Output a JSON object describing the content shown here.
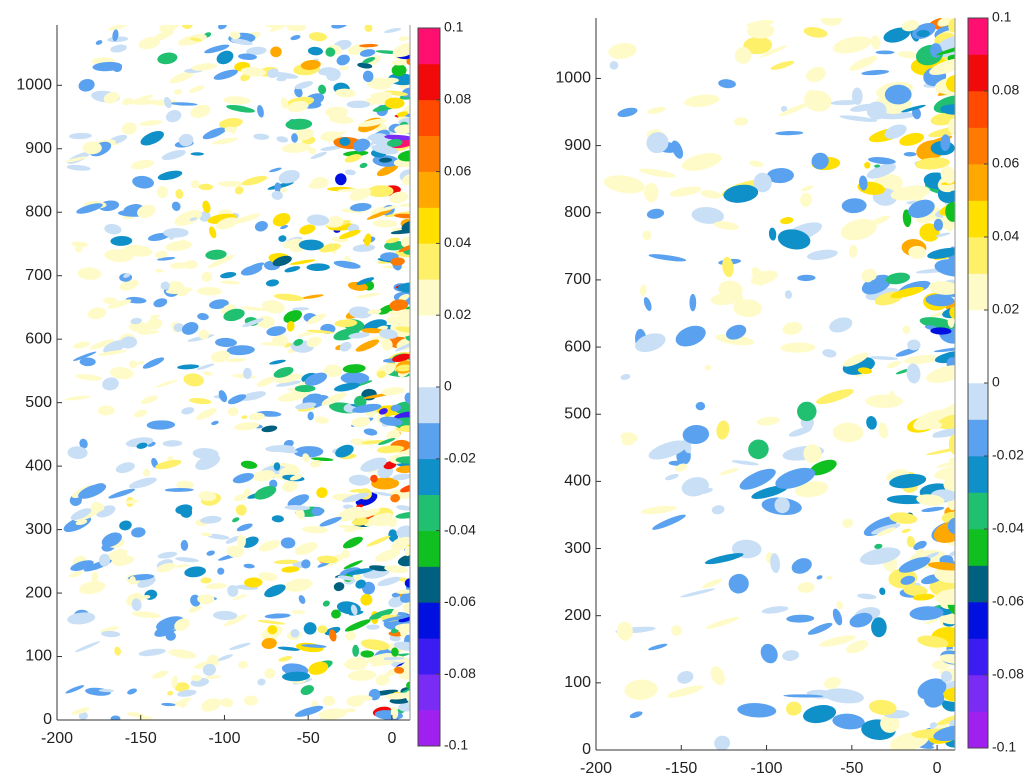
{
  "chart_data": [
    {
      "type": "contour",
      "xlim": [
        -200,
        10.8
      ],
      "xticks": [
        -200,
        -150,
        -100,
        -50,
        0
      ],
      "ylim": [
        0,
        1095
      ],
      "yticks": [
        0,
        100,
        200,
        300,
        400,
        500,
        600,
        700,
        800,
        900,
        1000
      ],
      "colorbar": {
        "lim": [
          -0.1,
          0.1
        ],
        "ticks": [
          0.1,
          0.08,
          0.06,
          0.04,
          0.02,
          0,
          -0.02,
          -0.04,
          -0.06,
          -0.08,
          -0.1
        ],
        "colors": [
          "#a020f0",
          "#7b2cf4",
          "#3c1cf0",
          "#0010e0",
          "#006080",
          "#10c020",
          "#20c070",
          "#1090c8",
          "#5aa2ef",
          "#c8dff6",
          "#ffffff",
          "#ffffff",
          "#fffbc8",
          "#fff06a",
          "#ffe000",
          "#ffa800",
          "#ff7a00",
          "#ff4a00",
          "#f00a0a",
          "#ff1070"
        ]
      }
    },
    {
      "type": "contour",
      "xlim": [
        -200,
        10.5
      ],
      "xticks": [
        -200,
        -150,
        -100,
        -50,
        0
      ],
      "ylim": [
        0,
        1090
      ],
      "yticks": [
        0,
        100,
        200,
        300,
        400,
        500,
        600,
        700,
        800,
        900,
        1000
      ],
      "colorbar": {
        "lim": [
          -0.1,
          0.1
        ],
        "ticks": [
          0.1,
          0.08,
          0.06,
          0.04,
          0.02,
          0,
          -0.02,
          -0.04,
          -0.06,
          -0.08,
          -0.1
        ],
        "colors": [
          "#a020f0",
          "#7b2cf4",
          "#3c1cf0",
          "#0010e0",
          "#006080",
          "#10c020",
          "#20c070",
          "#1090c8",
          "#5aa2ef",
          "#c8dff6",
          "#ffffff",
          "#ffffff",
          "#fffbc8",
          "#fff06a",
          "#ffe000",
          "#ffa800",
          "#ff7a00",
          "#ff4a00",
          "#f00a0a",
          "#ff1070"
        ]
      }
    }
  ]
}
